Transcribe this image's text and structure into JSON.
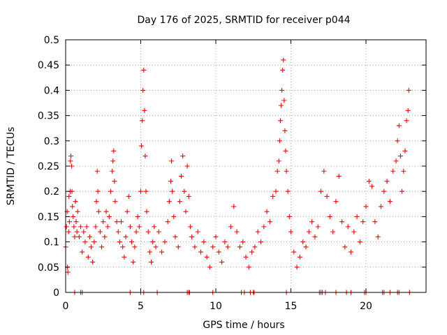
{
  "chart_data": {
    "type": "scatter",
    "title": "Day 176 of 2025, SRMTID for receiver p044",
    "xlabel": "GPS time / hours",
    "ylabel": "SRMTID / TECUs",
    "xlim": [
      0,
      24
    ],
    "ylim": [
      0,
      0.5
    ],
    "xticks": [
      0,
      5,
      10,
      15,
      20
    ],
    "xtick_labels": [
      "0",
      "5",
      "10",
      "15",
      "20"
    ],
    "yticks": [
      0,
      0.05,
      0.1,
      0.15,
      0.2,
      0.25,
      0.3,
      0.35,
      0.4,
      0.45,
      0.5
    ],
    "ytick_labels": [
      "0",
      "0.05",
      "0.1",
      "0.15",
      "0.2",
      "0.25",
      "0.3",
      "0.35",
      "0.4",
      "0.45",
      "0.5"
    ],
    "grid": true,
    "marker": "+",
    "color": "#ff0000",
    "series": [
      {
        "name": "SRMTID",
        "points": [
          [
            0.0,
            0.09
          ],
          [
            0.05,
            0.13
          ],
          [
            0.1,
            0.16
          ],
          [
            0.12,
            0.05
          ],
          [
            0.15,
            0.04
          ],
          [
            0.2,
            0.12
          ],
          [
            0.22,
            0.19
          ],
          [
            0.25,
            0.14
          ],
          [
            0.3,
            0.2
          ],
          [
            0.32,
            0.26
          ],
          [
            0.35,
            0.27
          ],
          [
            0.4,
            0.25
          ],
          [
            0.42,
            0.2
          ],
          [
            0.45,
            0.17
          ],
          [
            0.5,
            0.15
          ],
          [
            0.55,
            0.13
          ],
          [
            0.6,
            0.11
          ],
          [
            0.65,
            0.18
          ],
          [
            0.7,
            0.14
          ],
          [
            0.75,
            0.12
          ],
          [
            0.8,
            0.16
          ],
          [
            0.9,
            0.11
          ],
          [
            1.0,
            0.13
          ],
          [
            1.1,
            0.08
          ],
          [
            1.2,
            0.12
          ],
          [
            1.3,
            0.1
          ],
          [
            1.4,
            0.13
          ],
          [
            1.5,
            0.07
          ],
          [
            1.6,
            0.11
          ],
          [
            1.7,
            0.09
          ],
          [
            1.8,
            0.06
          ],
          [
            1.9,
            0.1
          ],
          [
            2.0,
            0.13
          ],
          [
            2.05,
            0.18
          ],
          [
            2.1,
            0.24
          ],
          [
            2.15,
            0.2
          ],
          [
            2.2,
            0.16
          ],
          [
            2.3,
            0.12
          ],
          [
            2.4,
            0.09
          ],
          [
            2.5,
            0.14
          ],
          [
            2.6,
            0.11
          ],
          [
            2.7,
            0.16
          ],
          [
            2.8,
            0.13
          ],
          [
            2.9,
            0.15
          ],
          [
            3.0,
            0.2
          ],
          [
            3.1,
            0.24
          ],
          [
            3.15,
            0.26
          ],
          [
            3.2,
            0.28
          ],
          [
            3.25,
            0.22
          ],
          [
            3.3,
            0.18
          ],
          [
            3.4,
            0.14
          ],
          [
            3.5,
            0.12
          ],
          [
            3.6,
            0.1
          ],
          [
            3.7,
            0.14
          ],
          [
            3.8,
            0.09
          ],
          [
            3.9,
            0.07
          ],
          [
            4.0,
            0.11
          ],
          [
            4.1,
            0.16
          ],
          [
            4.2,
            0.19
          ],
          [
            4.3,
            0.13
          ],
          [
            4.4,
            0.1
          ],
          [
            4.5,
            0.06
          ],
          [
            4.6,
            0.09
          ],
          [
            4.7,
            0.12
          ],
          [
            4.8,
            0.15
          ],
          [
            4.9,
            0.13
          ],
          [
            5.0,
            0.2
          ],
          [
            5.05,
            0.29
          ],
          [
            5.1,
            0.34
          ],
          [
            5.15,
            0.4
          ],
          [
            5.2,
            0.44
          ],
          [
            5.25,
            0.36
          ],
          [
            5.3,
            0.27
          ],
          [
            5.35,
            0.2
          ],
          [
            5.4,
            0.16
          ],
          [
            5.5,
            0.12
          ],
          [
            5.6,
            0.08
          ],
          [
            5.7,
            0.06
          ],
          [
            5.8,
            0.1
          ],
          [
            5.9,
            0.13
          ],
          [
            6.0,
            0.09
          ],
          [
            6.2,
            0.12
          ],
          [
            6.4,
            0.08
          ],
          [
            6.6,
            0.1
          ],
          [
            6.8,
            0.14
          ],
          [
            6.9,
            0.18
          ],
          [
            7.0,
            0.22
          ],
          [
            7.05,
            0.26
          ],
          [
            7.1,
            0.2
          ],
          [
            7.2,
            0.15
          ],
          [
            7.3,
            0.11
          ],
          [
            7.5,
            0.09
          ],
          [
            7.6,
            0.18
          ],
          [
            7.7,
            0.23
          ],
          [
            7.8,
            0.27
          ],
          [
            7.9,
            0.2
          ],
          [
            8.0,
            0.16
          ],
          [
            8.1,
            0.25
          ],
          [
            8.2,
            0.19
          ],
          [
            8.3,
            0.13
          ],
          [
            8.4,
            0.11
          ],
          [
            8.6,
            0.09
          ],
          [
            8.8,
            0.12
          ],
          [
            9.0,
            0.08
          ],
          [
            9.2,
            0.1
          ],
          [
            9.4,
            0.07
          ],
          [
            9.6,
            0.05
          ],
          [
            9.8,
            0.09
          ],
          [
            10.0,
            0.11
          ],
          [
            10.2,
            0.08
          ],
          [
            10.4,
            0.06
          ],
          [
            10.6,
            0.1
          ],
          [
            10.8,
            0.09
          ],
          [
            11.0,
            0.13
          ],
          [
            11.2,
            0.17
          ],
          [
            11.4,
            0.12
          ],
          [
            11.6,
            0.09
          ],
          [
            11.8,
            0.1
          ],
          [
            12.0,
            0.07
          ],
          [
            12.2,
            0.05
          ],
          [
            12.4,
            0.08
          ],
          [
            12.6,
            0.09
          ],
          [
            12.8,
            0.12
          ],
          [
            13.0,
            0.1
          ],
          [
            13.2,
            0.13
          ],
          [
            13.4,
            0.16
          ],
          [
            13.6,
            0.14
          ],
          [
            13.8,
            0.19
          ],
          [
            14.0,
            0.2
          ],
          [
            14.1,
            0.24
          ],
          [
            14.2,
            0.26
          ],
          [
            14.25,
            0.3
          ],
          [
            14.3,
            0.34
          ],
          [
            14.35,
            0.37
          ],
          [
            14.4,
            0.4
          ],
          [
            14.45,
            0.44
          ],
          [
            14.5,
            0.46
          ],
          [
            14.55,
            0.38
          ],
          [
            14.6,
            0.32
          ],
          [
            14.65,
            0.28
          ],
          [
            14.7,
            0.24
          ],
          [
            14.8,
            0.2
          ],
          [
            14.9,
            0.15
          ],
          [
            15.0,
            0.12
          ],
          [
            15.2,
            0.08
          ],
          [
            15.4,
            0.05
          ],
          [
            15.6,
            0.07
          ],
          [
            15.8,
            0.1
          ],
          [
            16.0,
            0.09
          ],
          [
            16.2,
            0.12
          ],
          [
            16.4,
            0.14
          ],
          [
            16.6,
            0.11
          ],
          [
            16.8,
            0.13
          ],
          [
            17.0,
            0.2
          ],
          [
            17.2,
            0.24
          ],
          [
            17.4,
            0.19
          ],
          [
            17.6,
            0.15
          ],
          [
            17.8,
            0.12
          ],
          [
            18.0,
            0.18
          ],
          [
            18.2,
            0.23
          ],
          [
            18.4,
            0.14
          ],
          [
            18.6,
            0.09
          ],
          [
            18.8,
            0.13
          ],
          [
            19.0,
            0.08
          ],
          [
            19.2,
            0.12
          ],
          [
            19.4,
            0.15
          ],
          [
            19.6,
            0.1
          ],
          [
            19.8,
            0.14
          ],
          [
            20.0,
            0.17
          ],
          [
            20.2,
            0.22
          ],
          [
            20.4,
            0.21
          ],
          [
            20.6,
            0.14
          ],
          [
            20.8,
            0.11
          ],
          [
            21.0,
            0.17
          ],
          [
            21.2,
            0.2
          ],
          [
            21.4,
            0.22
          ],
          [
            21.6,
            0.18
          ],
          [
            21.8,
            0.24
          ],
          [
            22.0,
            0.26
          ],
          [
            22.1,
            0.3
          ],
          [
            22.2,
            0.33
          ],
          [
            22.3,
            0.27
          ],
          [
            22.4,
            0.2
          ],
          [
            22.5,
            0.24
          ],
          [
            22.6,
            0.28
          ],
          [
            22.7,
            0.34
          ],
          [
            22.8,
            0.36
          ],
          [
            22.85,
            0.4
          ]
        ]
      }
    ],
    "zero_markers": [
      0.6,
      1.0,
      1.1,
      4.3,
      5.0,
      5.2,
      6.1,
      8.1,
      8.2,
      8.25,
      9.8,
      11.7,
      11.9,
      12.3,
      12.5,
      12.55,
      14.7,
      16.9,
      17.0,
      17.1,
      17.3,
      18.0,
      18.7,
      19.0,
      19.9,
      20.0,
      21.1,
      21.2,
      21.6,
      22.1,
      22.2,
      22.9
    ]
  }
}
